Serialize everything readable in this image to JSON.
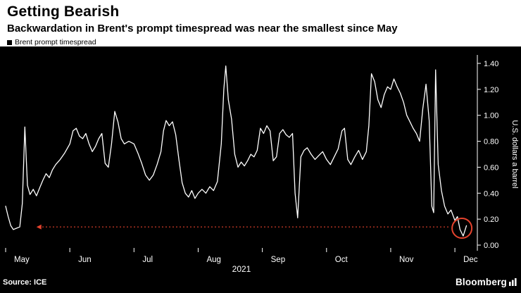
{
  "header": {
    "title": "Getting Bearish",
    "subtitle": "Backwardation in Brent's prompt timespread was near the smallest since May"
  },
  "legend": {
    "label": "Brent prompt timespread",
    "marker_color": "#000000"
  },
  "chart_data": {
    "type": "line",
    "title": "Getting Bearish",
    "subtitle": "Backwardation in Brent's prompt timespread was near the smallest since May",
    "series_name": "Brent prompt timespread",
    "ylabel": "U.S. dollars a barrel",
    "ylim": [
      0,
      1.4
    ],
    "yticks": [
      0.0,
      0.2,
      0.4,
      0.6,
      0.8,
      1.0,
      1.2,
      1.4
    ],
    "xtick_labels": [
      "May",
      "Jun",
      "Jul",
      "Aug",
      "Sep",
      "Oct",
      "Nov",
      "Dec"
    ],
    "x_axis_year": "2021",
    "x_unit": "months since May 1, 2021",
    "grid": false,
    "legend_position": "top-left",
    "background": "#000000",
    "line_color": "#ffffff",
    "points": [
      [
        0.0,
        0.3
      ],
      [
        0.04,
        0.22
      ],
      [
        0.08,
        0.15
      ],
      [
        0.12,
        0.12
      ],
      [
        0.17,
        0.13
      ],
      [
        0.22,
        0.14
      ],
      [
        0.26,
        0.32
      ],
      [
        0.3,
        0.91
      ],
      [
        0.34,
        0.46
      ],
      [
        0.38,
        0.39
      ],
      [
        0.43,
        0.43
      ],
      [
        0.48,
        0.38
      ],
      [
        0.53,
        0.44
      ],
      [
        0.58,
        0.5
      ],
      [
        0.63,
        0.55
      ],
      [
        0.68,
        0.52
      ],
      [
        0.73,
        0.58
      ],
      [
        0.78,
        0.62
      ],
      [
        0.85,
        0.66
      ],
      [
        0.92,
        0.71
      ],
      [
        1.0,
        0.78
      ],
      [
        1.05,
        0.88
      ],
      [
        1.1,
        0.9
      ],
      [
        1.15,
        0.84
      ],
      [
        1.2,
        0.82
      ],
      [
        1.25,
        0.86
      ],
      [
        1.3,
        0.78
      ],
      [
        1.35,
        0.72
      ],
      [
        1.4,
        0.76
      ],
      [
        1.45,
        0.82
      ],
      [
        1.5,
        0.86
      ],
      [
        1.55,
        0.63
      ],
      [
        1.6,
        0.6
      ],
      [
        1.65,
        0.78
      ],
      [
        1.7,
        1.03
      ],
      [
        1.75,
        0.95
      ],
      [
        1.8,
        0.82
      ],
      [
        1.85,
        0.78
      ],
      [
        1.92,
        0.8
      ],
      [
        2.0,
        0.78
      ],
      [
        2.06,
        0.71
      ],
      [
        2.12,
        0.63
      ],
      [
        2.18,
        0.54
      ],
      [
        2.24,
        0.5
      ],
      [
        2.3,
        0.54
      ],
      [
        2.36,
        0.62
      ],
      [
        2.42,
        0.72
      ],
      [
        2.46,
        0.88
      ],
      [
        2.5,
        0.96
      ],
      [
        2.55,
        0.92
      ],
      [
        2.6,
        0.95
      ],
      [
        2.65,
        0.85
      ],
      [
        2.7,
        0.66
      ],
      [
        2.75,
        0.48
      ],
      [
        2.8,
        0.4
      ],
      [
        2.85,
        0.37
      ],
      [
        2.9,
        0.42
      ],
      [
        2.95,
        0.36
      ],
      [
        3.0,
        0.4
      ],
      [
        3.06,
        0.43
      ],
      [
        3.12,
        0.4
      ],
      [
        3.18,
        0.45
      ],
      [
        3.24,
        0.42
      ],
      [
        3.3,
        0.49
      ],
      [
        3.36,
        0.78
      ],
      [
        3.4,
        1.2
      ],
      [
        3.43,
        1.38
      ],
      [
        3.47,
        1.12
      ],
      [
        3.52,
        0.97
      ],
      [
        3.57,
        0.7
      ],
      [
        3.62,
        0.6
      ],
      [
        3.67,
        0.64
      ],
      [
        3.72,
        0.61
      ],
      [
        3.77,
        0.65
      ],
      [
        3.82,
        0.7
      ],
      [
        3.87,
        0.68
      ],
      [
        3.92,
        0.73
      ],
      [
        3.97,
        0.9
      ],
      [
        4.02,
        0.86
      ],
      [
        4.07,
        0.92
      ],
      [
        4.12,
        0.88
      ],
      [
        4.17,
        0.65
      ],
      [
        4.22,
        0.68
      ],
      [
        4.27,
        0.86
      ],
      [
        4.32,
        0.89
      ],
      [
        4.37,
        0.85
      ],
      [
        4.42,
        0.83
      ],
      [
        4.47,
        0.86
      ],
      [
        4.51,
        0.4
      ],
      [
        4.55,
        0.21
      ],
      [
        4.6,
        0.68
      ],
      [
        4.65,
        0.73
      ],
      [
        4.7,
        0.75
      ],
      [
        4.76,
        0.7
      ],
      [
        4.82,
        0.66
      ],
      [
        4.88,
        0.69
      ],
      [
        4.94,
        0.72
      ],
      [
        5.0,
        0.66
      ],
      [
        5.06,
        0.62
      ],
      [
        5.12,
        0.68
      ],
      [
        5.18,
        0.74
      ],
      [
        5.24,
        0.88
      ],
      [
        5.28,
        0.9
      ],
      [
        5.33,
        0.66
      ],
      [
        5.38,
        0.62
      ],
      [
        5.44,
        0.68
      ],
      [
        5.5,
        0.73
      ],
      [
        5.56,
        0.66
      ],
      [
        5.62,
        0.72
      ],
      [
        5.66,
        0.92
      ],
      [
        5.7,
        1.32
      ],
      [
        5.75,
        1.26
      ],
      [
        5.8,
        1.12
      ],
      [
        5.85,
        1.06
      ],
      [
        5.9,
        1.16
      ],
      [
        5.95,
        1.22
      ],
      [
        6.0,
        1.2
      ],
      [
        6.05,
        1.28
      ],
      [
        6.1,
        1.22
      ],
      [
        6.15,
        1.17
      ],
      [
        6.2,
        1.1
      ],
      [
        6.25,
        1.0
      ],
      [
        6.3,
        0.95
      ],
      [
        6.35,
        0.9
      ],
      [
        6.4,
        0.86
      ],
      [
        6.45,
        0.8
      ],
      [
        6.5,
        1.05
      ],
      [
        6.55,
        1.24
      ],
      [
        6.6,
        0.96
      ],
      [
        6.64,
        0.3
      ],
      [
        6.67,
        0.25
      ],
      [
        6.7,
        1.35
      ],
      [
        6.74,
        0.62
      ],
      [
        6.79,
        0.42
      ],
      [
        6.84,
        0.3
      ],
      [
        6.89,
        0.24
      ],
      [
        6.94,
        0.27
      ],
      [
        7.0,
        0.19
      ],
      [
        7.04,
        0.22
      ],
      [
        7.08,
        0.12
      ],
      [
        7.13,
        0.07
      ],
      [
        7.18,
        0.15
      ]
    ],
    "annotations": {
      "arrow": {
        "y": 0.14,
        "x_from": 6.9,
        "x_to": 0.48,
        "direction": "left",
        "style": "dotted",
        "color": "#e5432d"
      },
      "circle": {
        "x": 7.11,
        "y": 0.13,
        "radius_px": 14,
        "color": "#e5432d"
      }
    }
  },
  "footer": {
    "source": "Source: ICE",
    "logo": "Bloomberg"
  }
}
